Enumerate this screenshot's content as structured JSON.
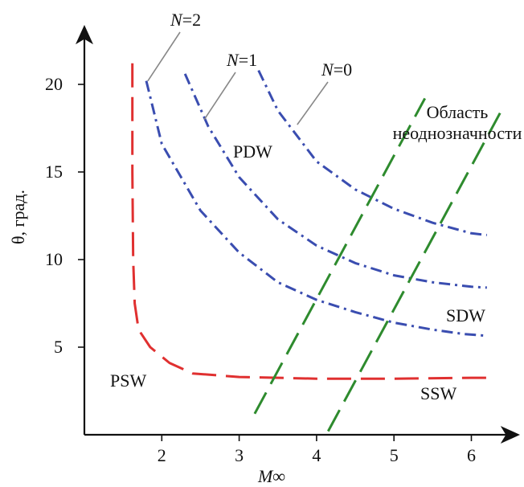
{
  "chart_data": {
    "type": "line",
    "xlabel": "M∞",
    "ylabel": "θ, град.",
    "xlim": [
      1.0,
      6.5
    ],
    "ylim": [
      0,
      22
    ],
    "x_ticks": [
      "2",
      "3",
      "4",
      "5",
      "6"
    ],
    "x_tick_values": [
      2,
      3,
      4,
      5,
      6
    ],
    "y_ticks": [
      "5",
      "10",
      "15",
      "20"
    ],
    "y_tick_values": [
      5,
      10,
      15,
      20
    ],
    "grid": false,
    "series": [
      {
        "key": "n2",
        "label": "N=2",
        "color": "#3a4db0",
        "dash": "dashdot",
        "x": [
          1.8,
          2.0,
          2.5,
          3.0,
          3.5,
          4.0,
          4.5,
          5.0,
          5.5,
          5.9,
          6.2
        ],
        "y": [
          20.2,
          16.6,
          12.8,
          10.4,
          8.7,
          7.7,
          7.0,
          6.4,
          6.0,
          5.75,
          5.65
        ]
      },
      {
        "key": "n1",
        "label": "N=1",
        "color": "#3a4db0",
        "dash": "dashdot",
        "x": [
          2.3,
          2.6,
          3.0,
          3.5,
          4.0,
          4.5,
          5.0,
          5.5,
          6.0,
          6.2
        ],
        "y": [
          20.6,
          17.6,
          14.7,
          12.3,
          10.8,
          9.8,
          9.1,
          8.7,
          8.45,
          8.4
        ]
      },
      {
        "key": "n0",
        "label": "N=0",
        "color": "#3a4db0",
        "dash": "dashdot",
        "x": [
          3.25,
          3.5,
          4.0,
          4.5,
          5.0,
          5.5,
          6.0,
          6.2
        ],
        "y": [
          20.8,
          18.5,
          15.6,
          14.0,
          12.9,
          12.1,
          11.5,
          11.4
        ]
      },
      {
        "key": "psw",
        "label": "PSW",
        "color": "#e03030",
        "dash": "dashed",
        "x": [
          1.62,
          1.62,
          1.63,
          1.65,
          1.7,
          1.85,
          2.1,
          2.4,
          3.0,
          4.0,
          5.0,
          6.0,
          6.2
        ],
        "y": [
          21.2,
          15.0,
          10.0,
          7.5,
          6.0,
          5.0,
          4.1,
          3.5,
          3.3,
          3.2,
          3.2,
          3.25,
          3.25
        ]
      },
      {
        "key": "bound_left",
        "label": "",
        "color": "#2e8b2e",
        "dash": "dashed",
        "x": [
          3.2,
          5.4
        ],
        "y": [
          1.2,
          19.2
        ]
      },
      {
        "key": "bound_right",
        "label": "",
        "color": "#2e8b2e",
        "dash": "dashed",
        "x": [
          4.15,
          6.4
        ],
        "y": [
          0.2,
          18.6
        ]
      }
    ],
    "annotations": [
      {
        "key": "n2",
        "italic": "N",
        "rest": "=2",
        "anchor_x": 1.82,
        "anchor_y": 20.2
      },
      {
        "key": "n1",
        "italic": "N",
        "rest": "=1",
        "anchor_x": 2.55,
        "anchor_y": 18.0
      },
      {
        "key": "n0",
        "italic": "N",
        "rest": "=0",
        "anchor_x": 3.75,
        "anchor_y": 17.7
      },
      {
        "key": "pdw",
        "text": "PDW"
      },
      {
        "key": "sdw",
        "text": "SDW"
      },
      {
        "key": "psw",
        "text": "PSW"
      },
      {
        "key": "ssw",
        "text": "SSW"
      },
      {
        "key": "region1",
        "text": "Область"
      },
      {
        "key": "region2",
        "text": "неоднозначности"
      }
    ]
  }
}
